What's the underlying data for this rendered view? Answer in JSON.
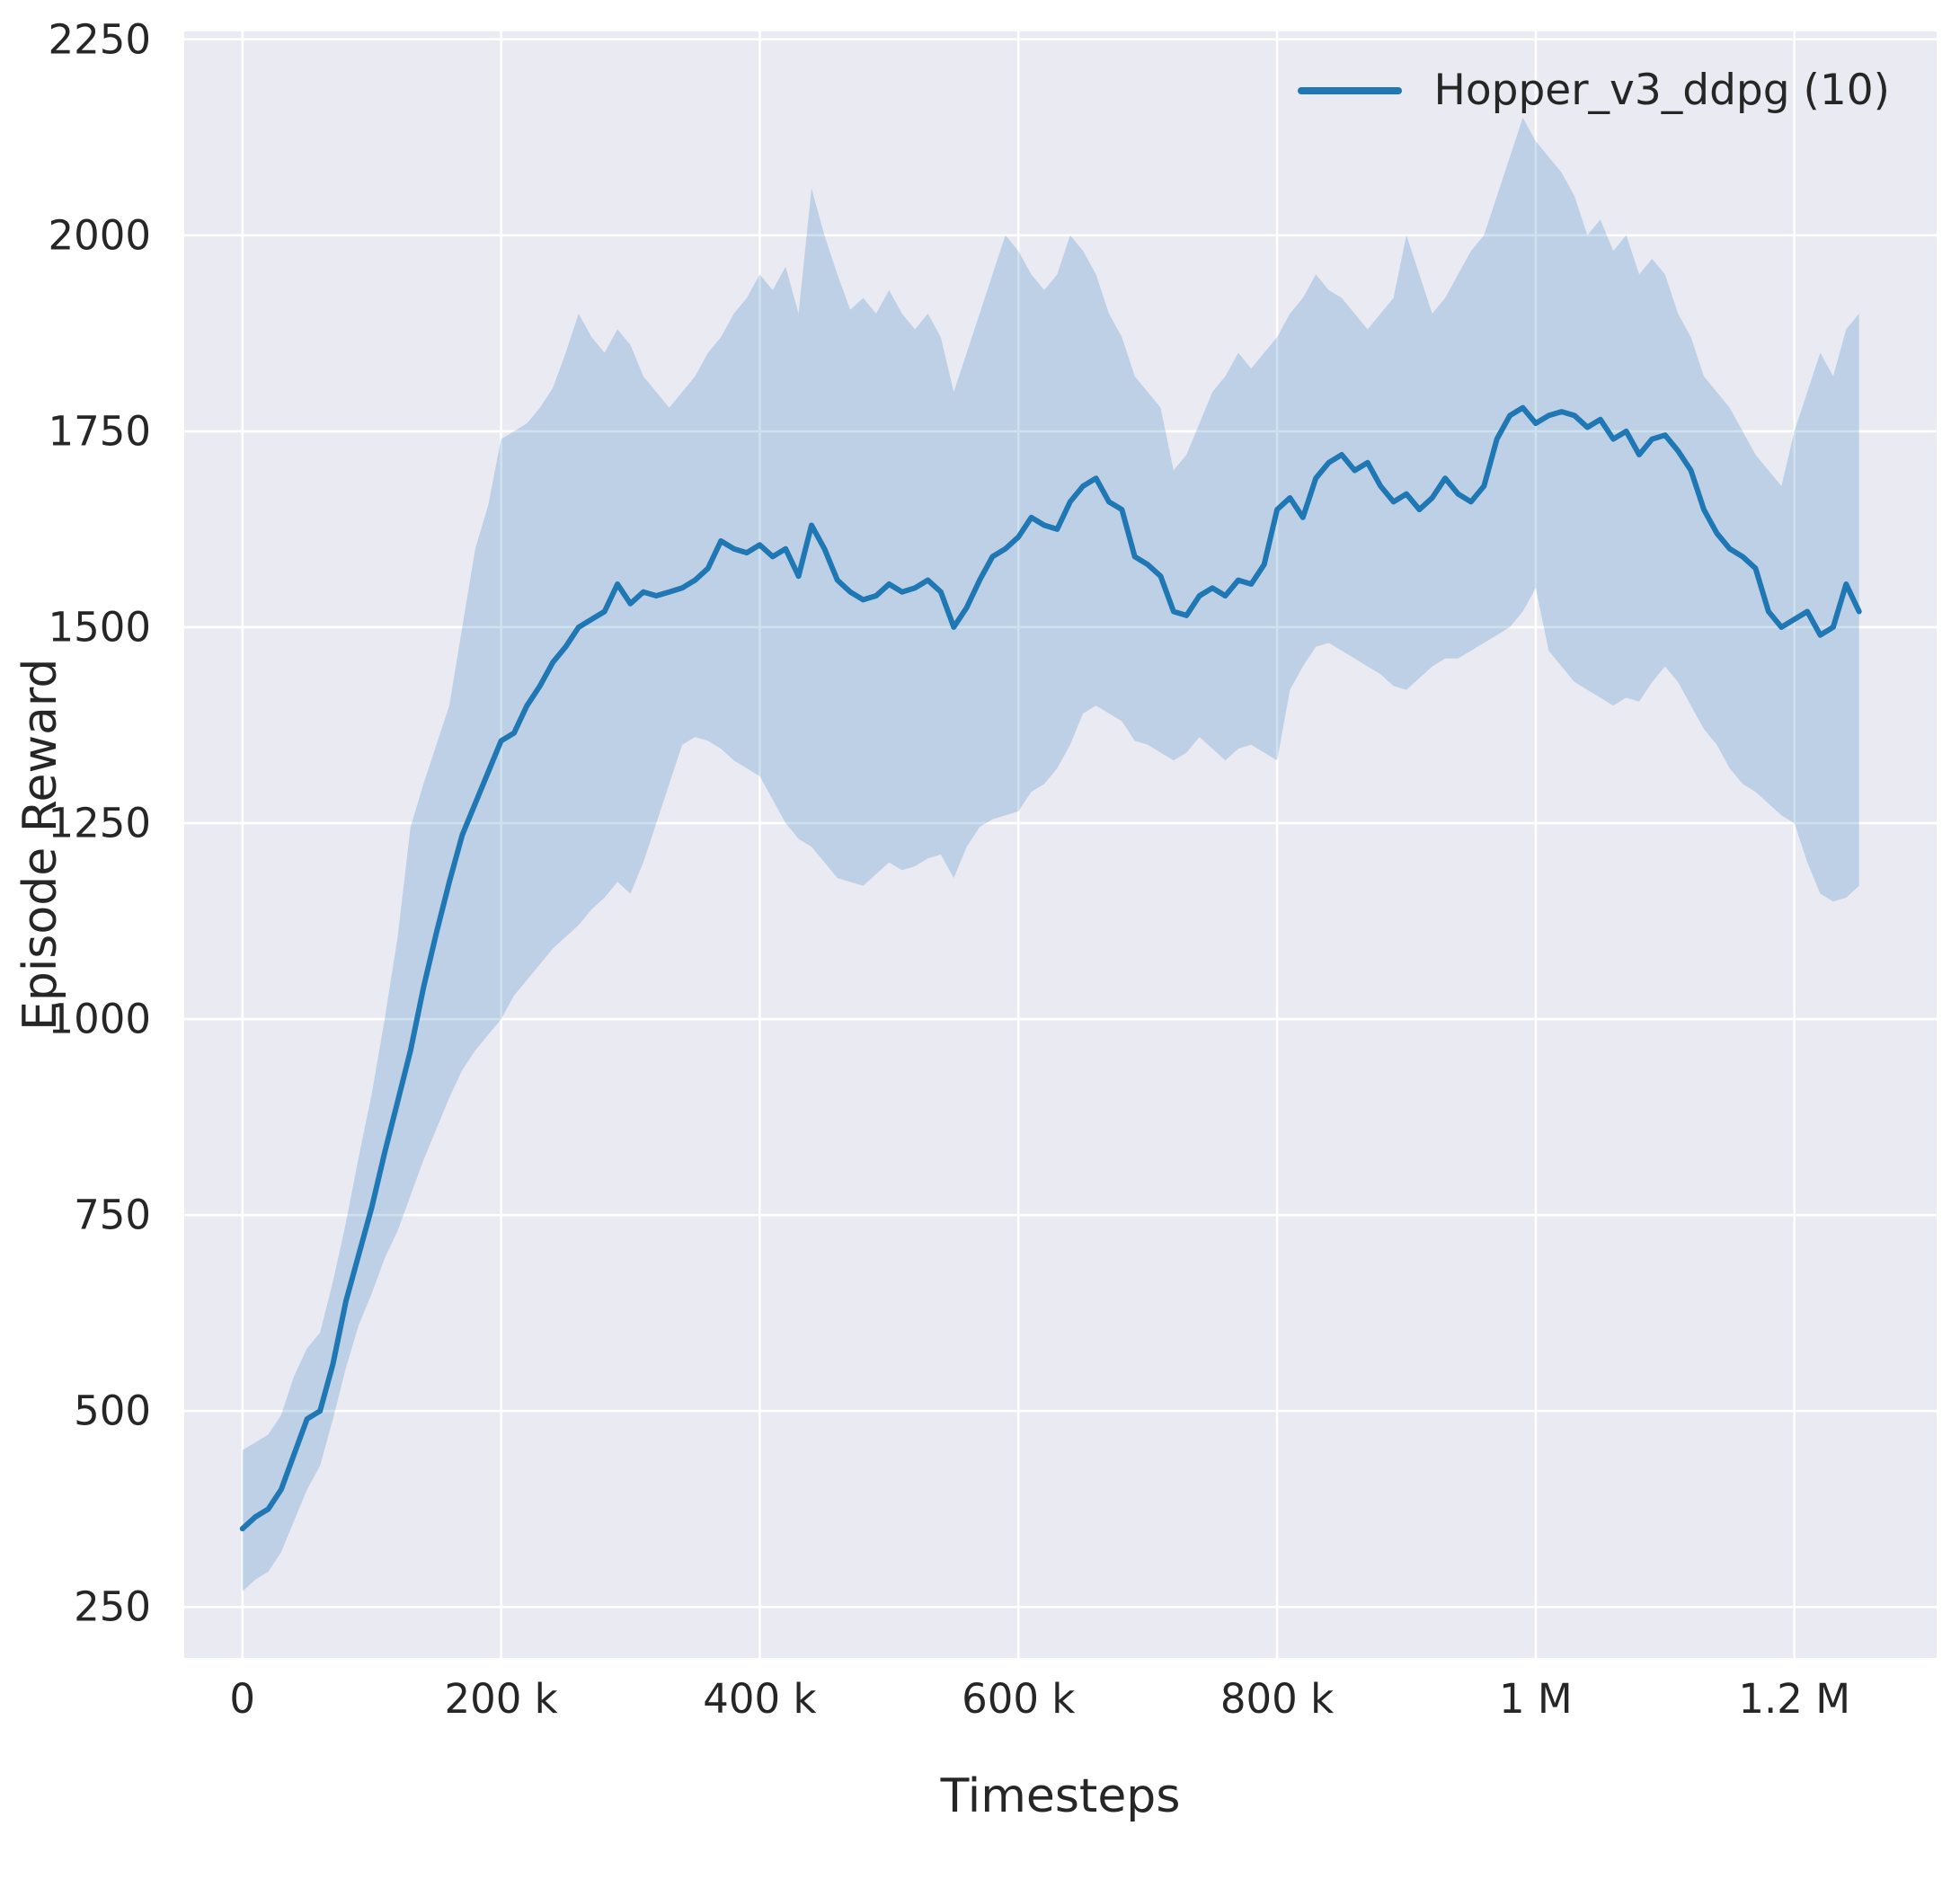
{
  "chart_data": {
    "type": "line",
    "title": "",
    "xlabel": "Timesteps",
    "ylabel": "Episode Reward",
    "legend_position": "upper right",
    "grid": true,
    "plot_background": "#eaeaf2",
    "grid_color": "#ffffff",
    "text_color": "#262626",
    "band_opacity": 0.22,
    "xlim": [
      -45000,
      1310000
    ],
    "ylim": [
      185,
      2260
    ],
    "x_ticks": [
      {
        "value": 0,
        "label": "0"
      },
      {
        "value": 200000,
        "label": "200 k"
      },
      {
        "value": 400000,
        "label": "400 k"
      },
      {
        "value": 600000,
        "label": "600 k"
      },
      {
        "value": 800000,
        "label": "800 k"
      },
      {
        "value": 1000000,
        "label": "1 M"
      },
      {
        "value": 1200000,
        "label": "1.2 M"
      }
    ],
    "y_ticks": [
      {
        "value": 250,
        "label": "250"
      },
      {
        "value": 500,
        "label": "500"
      },
      {
        "value": 750,
        "label": "750"
      },
      {
        "value": 1000,
        "label": "1000"
      },
      {
        "value": 1250,
        "label": "1250"
      },
      {
        "value": 1500,
        "label": "1500"
      },
      {
        "value": 1750,
        "label": "1750"
      },
      {
        "value": 2000,
        "label": "2000"
      },
      {
        "value": 2250,
        "label": "2250"
      }
    ],
    "series": [
      {
        "name": "Hopper_v3_ddpg (10)",
        "color": "#1f77b4",
        "x": [
          0,
          10000,
          20000,
          30000,
          40000,
          50000,
          60000,
          70000,
          80000,
          90000,
          100000,
          110000,
          120000,
          130000,
          140000,
          150000,
          160000,
          170000,
          180000,
          190000,
          200000,
          210000,
          220000,
          230000,
          240000,
          250000,
          260000,
          270000,
          280000,
          290000,
          300000,
          310000,
          320000,
          330000,
          340000,
          350000,
          360000,
          370000,
          380000,
          390000,
          400000,
          410000,
          420000,
          430000,
          440000,
          450000,
          460000,
          470000,
          480000,
          490000,
          500000,
          510000,
          520000,
          530000,
          540000,
          550000,
          560000,
          570000,
          580000,
          590000,
          600000,
          610000,
          620000,
          630000,
          640000,
          650000,
          660000,
          670000,
          680000,
          690000,
          700000,
          710000,
          720000,
          730000,
          740000,
          750000,
          760000,
          770000,
          780000,
          790000,
          800000,
          810000,
          820000,
          830000,
          840000,
          850000,
          860000,
          870000,
          880000,
          890000,
          900000,
          910000,
          920000,
          930000,
          940000,
          950000,
          960000,
          970000,
          980000,
          990000,
          1000000,
          1010000,
          1020000,
          1030000,
          1040000,
          1050000,
          1060000,
          1070000,
          1080000,
          1090000,
          1100000,
          1110000,
          1120000,
          1130000,
          1140000,
          1150000,
          1160000,
          1170000,
          1180000,
          1190000,
          1200000,
          1210000,
          1220000,
          1230000,
          1240000,
          1250000
        ],
        "mean": [
          350,
          365,
          375,
          400,
          445,
          490,
          500,
          560,
          640,
          700,
          760,
          830,
          895,
          960,
          1040,
          1110,
          1175,
          1235,
          1275,
          1315,
          1355,
          1365,
          1400,
          1425,
          1455,
          1475,
          1500,
          1510,
          1520,
          1555,
          1530,
          1545,
          1540,
          1545,
          1550,
          1560,
          1575,
          1610,
          1600,
          1595,
          1605,
          1590,
          1600,
          1565,
          1630,
          1600,
          1560,
          1545,
          1535,
          1540,
          1555,
          1545,
          1550,
          1560,
          1545,
          1500,
          1525,
          1560,
          1590,
          1600,
          1615,
          1640,
          1630,
          1625,
          1660,
          1680,
          1690,
          1660,
          1650,
          1590,
          1580,
          1565,
          1520,
          1515,
          1540,
          1550,
          1540,
          1560,
          1555,
          1580,
          1650,
          1665,
          1640,
          1690,
          1710,
          1720,
          1700,
          1710,
          1680,
          1660,
          1670,
          1650,
          1665,
          1690,
          1670,
          1660,
          1680,
          1740,
          1770,
          1780,
          1760,
          1770,
          1775,
          1770,
          1755,
          1765,
          1740,
          1750,
          1720,
          1740,
          1745,
          1725,
          1700,
          1650,
          1620,
          1600,
          1590,
          1575,
          1520,
          1500,
          1510,
          1520,
          1490,
          1500,
          1555,
          1520
        ],
        "lower": [
          270,
          285,
          295,
          320,
          360,
          400,
          430,
          490,
          555,
          610,
          650,
          695,
          730,
          775,
          820,
          860,
          900,
          935,
          960,
          980,
          1000,
          1030,
          1050,
          1070,
          1090,
          1105,
          1120,
          1140,
          1155,
          1175,
          1160,
          1200,
          1250,
          1300,
          1350,
          1360,
          1355,
          1345,
          1330,
          1320,
          1310,
          1280,
          1250,
          1230,
          1220,
          1200,
          1180,
          1175,
          1170,
          1185,
          1200,
          1190,
          1195,
          1205,
          1210,
          1180,
          1220,
          1245,
          1255,
          1260,
          1265,
          1290,
          1300,
          1320,
          1350,
          1390,
          1400,
          1390,
          1380,
          1355,
          1350,
          1340,
          1330,
          1340,
          1360,
          1345,
          1330,
          1345,
          1350,
          1340,
          1330,
          1420,
          1450,
          1475,
          1480,
          1470,
          1460,
          1450,
          1440,
          1425,
          1420,
          1435,
          1450,
          1460,
          1460,
          1470,
          1480,
          1490,
          1500,
          1520,
          1550,
          1470,
          1450,
          1430,
          1420,
          1410,
          1400,
          1410,
          1405,
          1430,
          1450,
          1430,
          1400,
          1370,
          1350,
          1320,
          1300,
          1290,
          1275,
          1260,
          1250,
          1200,
          1160,
          1150,
          1155,
          1170
        ],
        "upper": [
          450,
          460,
          470,
          495,
          545,
          580,
          600,
          665,
          740,
          825,
          905,
          1000,
          1105,
          1245,
          1300,
          1350,
          1400,
          1500,
          1600,
          1655,
          1740,
          1750,
          1760,
          1780,
          1805,
          1850,
          1900,
          1870,
          1850,
          1880,
          1860,
          1820,
          1800,
          1780,
          1800,
          1820,
          1850,
          1870,
          1900,
          1920,
          1950,
          1930,
          1960,
          1900,
          2060,
          2000,
          1950,
          1905,
          1920,
          1900,
          1930,
          1900,
          1880,
          1900,
          1870,
          1800,
          1850,
          1900,
          1950,
          2000,
          1980,
          1950,
          1930,
          1950,
          2000,
          1980,
          1950,
          1900,
          1870,
          1820,
          1800,
          1780,
          1700,
          1720,
          1760,
          1800,
          1820,
          1850,
          1830,
          1850,
          1870,
          1900,
          1920,
          1950,
          1930,
          1920,
          1900,
          1880,
          1900,
          1920,
          2000,
          1950,
          1900,
          1920,
          1950,
          1980,
          2000,
          2050,
          2100,
          2150,
          2120,
          2100,
          2080,
          2050,
          2000,
          2020,
          1980,
          2000,
          1950,
          1970,
          1950,
          1900,
          1870,
          1820,
          1800,
          1780,
          1750,
          1720,
          1700,
          1680,
          1750,
          1800,
          1850,
          1820,
          1880,
          1900
        ]
      }
    ]
  }
}
